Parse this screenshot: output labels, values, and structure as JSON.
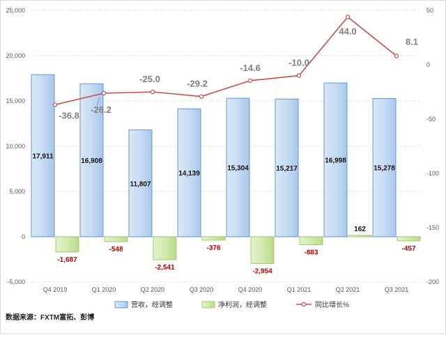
{
  "chart_data": {
    "type": "bar",
    "categories": [
      "Q4 2019",
      "Q1 2020",
      "Q2 2020",
      "Q3 2020",
      "Q4 2020",
      "Q1 2021",
      "Q2 2021",
      "Q3 2021"
    ],
    "series": [
      {
        "name": "营收，经调整",
        "type": "bar",
        "axis": "left",
        "values": [
          17911,
          16908,
          11807,
          14139,
          15304,
          15217,
          16998,
          15278
        ],
        "labels": [
          "17,911",
          "16,908",
          "11,807",
          "14,139",
          "15,304",
          "15,217",
          "16,998",
          "15,278"
        ],
        "color": "#bdd7ee"
      },
      {
        "name": "净利润，经调整",
        "type": "bar",
        "axis": "left",
        "values": [
          -1687,
          -548,
          -2541,
          -376,
          -2954,
          -883,
          162,
          -457
        ],
        "labels": [
          "-1,687",
          "-548",
          "-2,541",
          "-376",
          "-2,954",
          "-883",
          "162",
          "-457"
        ],
        "color": "#c5e0a5"
      },
      {
        "name": "同比增长%",
        "type": "line",
        "axis": "right",
        "values": [
          -36.8,
          -26.2,
          -25.0,
          -29.2,
          -14.6,
          -10.0,
          44.0,
          8.1
        ],
        "labels": [
          "-36.8",
          "-26.2",
          "-25.0",
          "-29.2",
          "-14.6",
          "-10.0",
          "44.0",
          "8.1"
        ],
        "color": "#c0504d"
      }
    ],
    "y_left": {
      "min": -5000,
      "max": 25000,
      "ticks": [
        "-5,000",
        "0",
        "5,000",
        "10,000",
        "15,000",
        "20,000",
        "25,000"
      ]
    },
    "y_right": {
      "min": -200,
      "max": 50,
      "ticks": [
        "-200",
        "-150",
        "-100",
        "-50",
        "0",
        "50"
      ]
    },
    "grid": true,
    "legend_position": "bottom"
  },
  "source_note": "数据来源：FXTM富拓、彭博"
}
